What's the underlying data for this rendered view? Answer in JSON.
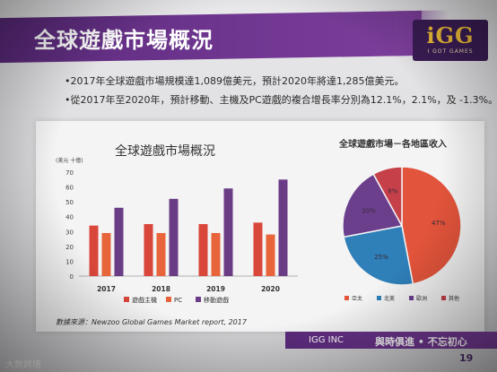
{
  "slide": {
    "title": "全球遊戲市場概況",
    "logo_text": "iGG",
    "logo_sub": "I GOT GAMES",
    "bullets": [
      "•2017年全球遊戲市場規模達1,089億美元，預計2020年將達1,285億美元。",
      "•從2017年至2020年，預計移動、主機及PC遊戲的複合增長率分別為12.1%，2.1%，及 -1.3%。"
    ],
    "source": "數據來源：Newzoo Global Games Market report, 2017",
    "footer_company": "IGG INC",
    "footer_slogan": "與時俱進 • 不忘初心",
    "page_number": "19",
    "watermark": "大数跨境"
  },
  "colors": {
    "console": "#d9463a",
    "pc": "#e8643a",
    "mobile": "#6a3c86",
    "header": "#6a3390",
    "asia": "#e2543b",
    "north_america": "#2f7fb8",
    "europe": "#6b3f8c",
    "other": "#c64049"
  },
  "chart_data": [
    {
      "type": "bar",
      "title": "全球遊戲市場概況",
      "ylabel": "(美元 十億)",
      "categories": [
        "2017",
        "2018",
        "2019",
        "2020"
      ],
      "ylim": [
        0,
        70
      ],
      "yticks": [
        "0",
        "10",
        "20",
        "30",
        "40",
        "50",
        "60",
        "70"
      ],
      "series": [
        {
          "name": "遊戲主機",
          "values": [
            34,
            35,
            35,
            36
          ]
        },
        {
          "name": "PC",
          "values": [
            29,
            29,
            29,
            28
          ]
        },
        {
          "name": "移動遊戲",
          "values": [
            46,
            52,
            59,
            65
          ]
        }
      ],
      "legend": "bottom"
    },
    {
      "type": "pie",
      "title": "全球遊戲市場－各地區收入",
      "slices": [
        {
          "name": "亞太",
          "value": 47,
          "label": "47%"
        },
        {
          "name": "北美",
          "value": 25,
          "label": "25%"
        },
        {
          "name": "歐洲",
          "value": 20,
          "label": "20%"
        },
        {
          "name": "其他",
          "value": 8,
          "label": "8%"
        }
      ],
      "legend": "bottom"
    }
  ]
}
